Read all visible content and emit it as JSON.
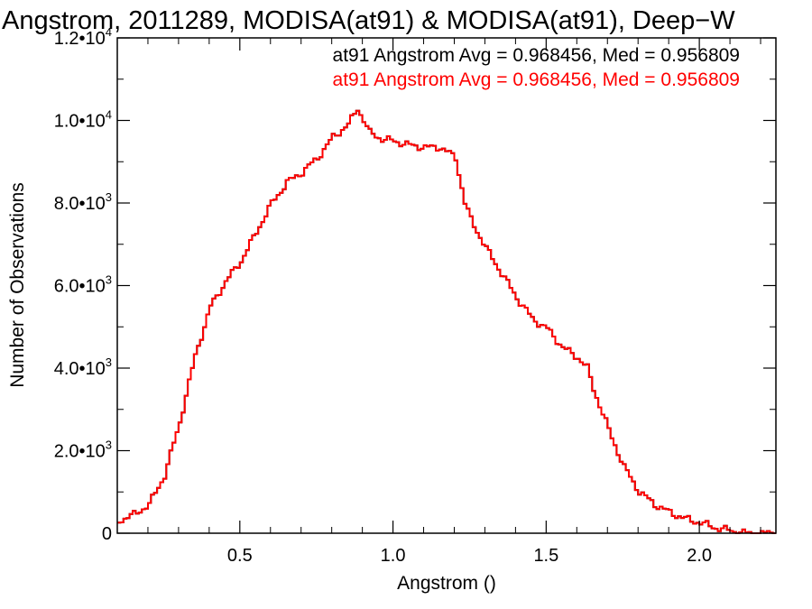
{
  "chart_data": {
    "type": "line",
    "title": "Angstrom, 2011289, MODISA(at91) & MODISA(at91), Deep−W",
    "xlabel": "Angstrom ()",
    "ylabel": "Number of Observations",
    "xlim": [
      0.1,
      2.25
    ],
    "ylim": [
      0,
      12000
    ],
    "grid": false,
    "x_ticks": [
      {
        "value": 0.5,
        "label": "0.5"
      },
      {
        "value": 1.0,
        "label": "1.0"
      },
      {
        "value": 1.5,
        "label": "1.5"
      },
      {
        "value": 2.0,
        "label": "2.0"
      }
    ],
    "y_ticks": [
      {
        "value": 0,
        "mant": "0",
        "exp": ""
      },
      {
        "value": 2000,
        "mant": "2.0•10",
        "exp": "3"
      },
      {
        "value": 4000,
        "mant": "4.0•10",
        "exp": "3"
      },
      {
        "value": 6000,
        "mant": "6.0•10",
        "exp": "3"
      },
      {
        "value": 8000,
        "mant": "8.0•10",
        "exp": "3"
      },
      {
        "value": 10000,
        "mant": "1.0•10",
        "exp": "4"
      },
      {
        "value": 12000,
        "mant": "1.2•10",
        "exp": "4"
      }
    ],
    "annotations": [
      {
        "text": "at91 Angstrom Avg = 0.968456, Med = 0.956809",
        "color": "#000000"
      },
      {
        "text": "at91 Angstrom Avg = 0.968456, Med = 0.956809",
        "color": "#ff0000"
      }
    ],
    "series": [
      {
        "color": "#000000",
        "x": [
          0.1,
          0.15,
          0.2,
          0.25,
          0.3,
          0.35,
          0.4,
          0.45,
          0.5,
          0.55,
          0.6,
          0.65,
          0.7,
          0.75,
          0.8,
          0.85,
          0.88,
          0.92,
          0.96,
          1.0,
          1.05,
          1.1,
          1.15,
          1.2,
          1.23,
          1.25,
          1.3,
          1.35,
          1.4,
          1.45,
          1.5,
          1.55,
          1.6,
          1.63,
          1.65,
          1.7,
          1.75,
          1.8,
          1.85,
          1.9,
          1.95,
          2.0,
          2.05,
          2.1,
          2.15,
          2.25
        ],
        "y": [
          300,
          450,
          700,
          1400,
          2700,
          4300,
          5500,
          6100,
          6600,
          7300,
          8000,
          8500,
          8750,
          9100,
          9600,
          9900,
          10300,
          9700,
          9550,
          9500,
          9400,
          9350,
          9350,
          9100,
          8000,
          7600,
          6900,
          6300,
          5700,
          5200,
          4950,
          4500,
          4250,
          4000,
          3500,
          2500,
          1600,
          1000,
          700,
          500,
          350,
          250,
          130,
          60,
          0,
          0
        ]
      },
      {
        "color": "#ff0000",
        "x": [
          0.1,
          0.15,
          0.2,
          0.25,
          0.3,
          0.35,
          0.4,
          0.45,
          0.5,
          0.55,
          0.6,
          0.65,
          0.7,
          0.75,
          0.8,
          0.85,
          0.88,
          0.92,
          0.96,
          1.0,
          1.05,
          1.1,
          1.15,
          1.2,
          1.23,
          1.25,
          1.3,
          1.35,
          1.4,
          1.45,
          1.5,
          1.55,
          1.6,
          1.63,
          1.65,
          1.7,
          1.75,
          1.8,
          1.85,
          1.9,
          1.95,
          2.0,
          2.05,
          2.1,
          2.15,
          2.25
        ],
        "y": [
          300,
          450,
          700,
          1400,
          2700,
          4300,
          5500,
          6100,
          6600,
          7300,
          8000,
          8500,
          8750,
          9100,
          9600,
          9900,
          10300,
          9700,
          9550,
          9500,
          9400,
          9350,
          9350,
          9100,
          8000,
          7600,
          6900,
          6300,
          5700,
          5200,
          4950,
          4500,
          4250,
          4000,
          3500,
          2500,
          1600,
          1000,
          700,
          500,
          350,
          250,
          130,
          60,
          0,
          0
        ]
      }
    ]
  }
}
